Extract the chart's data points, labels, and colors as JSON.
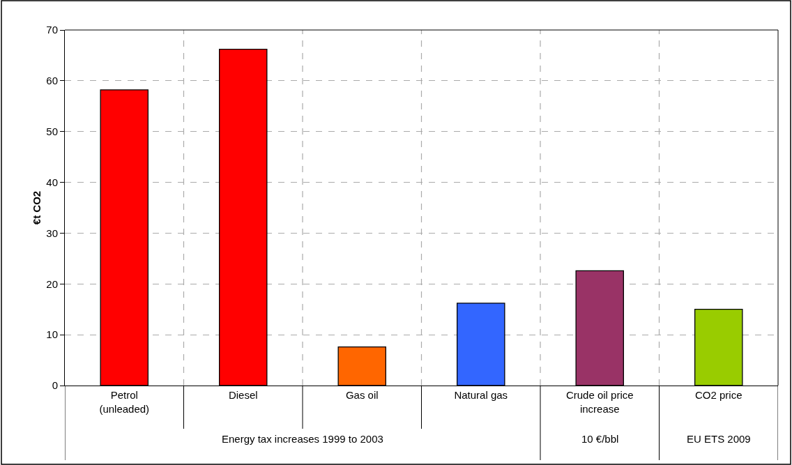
{
  "chart_data": {
    "type": "bar",
    "ylabel": "€t CO2",
    "categories": [
      "Petrol (unleaded)",
      "Diesel",
      "Gas oil",
      "Natural gas",
      "Crude oil price increase",
      "CO2 price"
    ],
    "values": [
      58.2,
      66.2,
      7.6,
      16.2,
      22.6,
      15.0
    ],
    "colors": [
      "#ff0000",
      "#ff0000",
      "#ff6600",
      "#3366ff",
      "#993366",
      "#99cc00"
    ],
    "ylim": [
      0,
      70
    ],
    "yticks": [
      0,
      10,
      20,
      30,
      40,
      50,
      60,
      70
    ],
    "grid": true,
    "annotations": [
      "Energy tax increases 1999 to 2003",
      "10 €/bbl",
      "EU ETS 2009"
    ]
  }
}
